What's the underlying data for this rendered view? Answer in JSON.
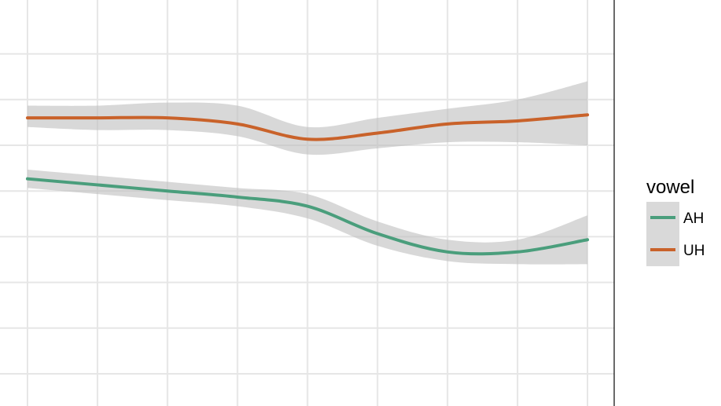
{
  "chart_data": {
    "type": "line",
    "xlim": [
      0,
      8
    ],
    "ylim": [
      0,
      1
    ],
    "x_gridlines": [
      0,
      1,
      2,
      3,
      4,
      5,
      6,
      7,
      8
    ],
    "y_gridlines": [
      0.0,
      0.15,
      0.3,
      0.45,
      0.6,
      0.75,
      0.9,
      1.05
    ],
    "grid": true,
    "legend": {
      "title": "vowel",
      "placement": "right"
    },
    "series": [
      {
        "name": "AH",
        "color": "#4a9e7c",
        "x": [
          0,
          1,
          2,
          3,
          4,
          5,
          6,
          7,
          8
        ],
        "y": [
          0.64,
          0.62,
          0.6,
          0.58,
          0.55,
          0.46,
          0.4,
          0.4,
          0.44
        ],
        "ci_upper": [
          0.67,
          0.65,
          0.63,
          0.61,
          0.59,
          0.5,
          0.44,
          0.44,
          0.52
        ],
        "ci_lower": [
          0.61,
          0.59,
          0.57,
          0.55,
          0.51,
          0.42,
          0.37,
          0.36,
          0.36
        ]
      },
      {
        "name": "UH",
        "color": "#c9622a",
        "x": [
          0,
          1,
          2,
          3,
          4,
          5,
          6,
          7,
          8
        ],
        "y": [
          0.84,
          0.84,
          0.84,
          0.82,
          0.77,
          0.79,
          0.82,
          0.83,
          0.85
        ],
        "ci_upper": [
          0.88,
          0.88,
          0.89,
          0.88,
          0.81,
          0.84,
          0.87,
          0.9,
          0.96
        ],
        "ci_lower": [
          0.81,
          0.8,
          0.8,
          0.78,
          0.72,
          0.74,
          0.76,
          0.76,
          0.75
        ]
      }
    ]
  }
}
